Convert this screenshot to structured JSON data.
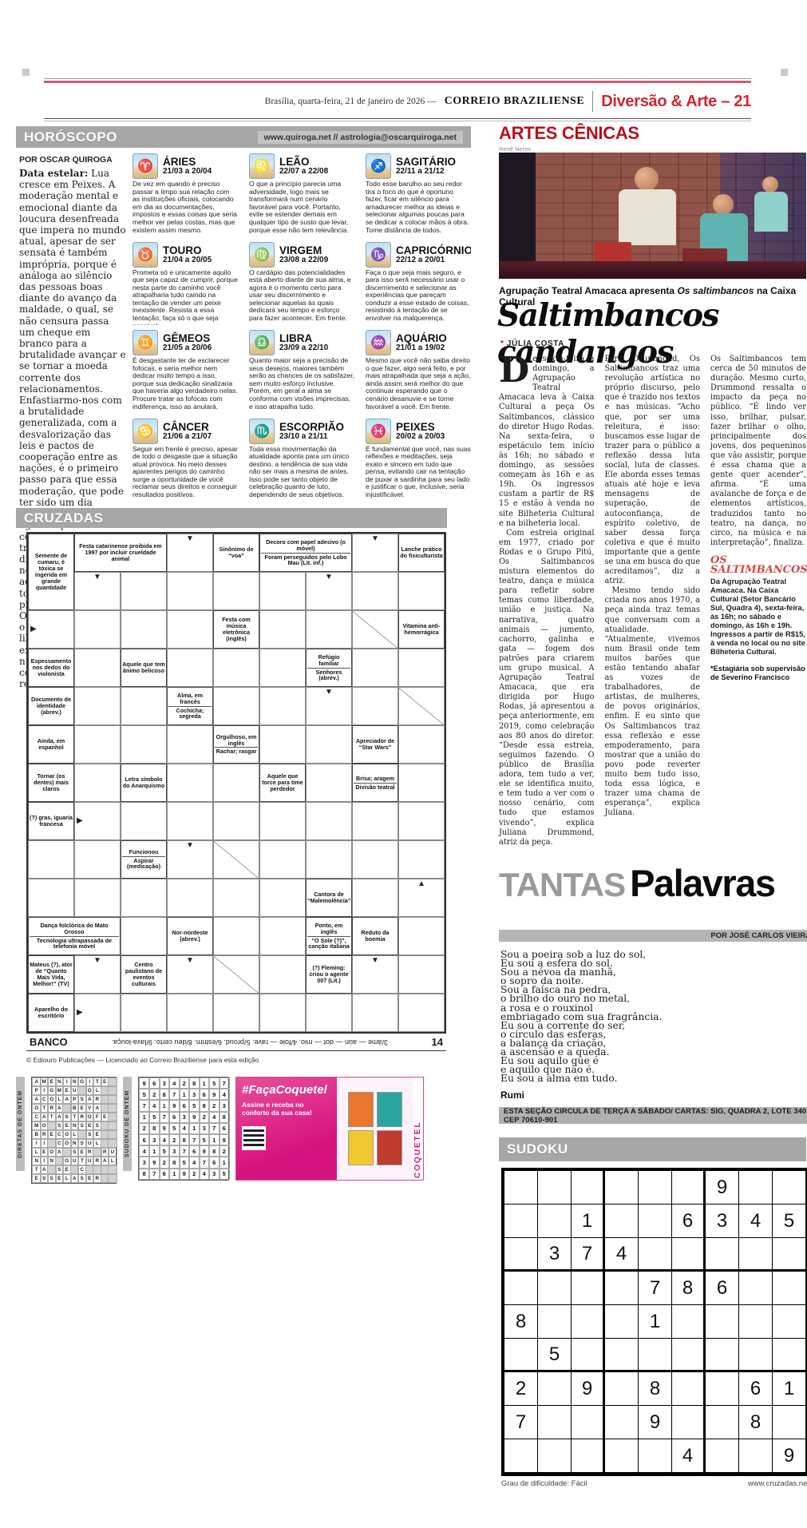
{
  "header": {
    "date": "Brasília, quarta-feira, 21 de janeiro de 2026 —",
    "brand": "CORREIO BRAZILIENSE",
    "section": "Diversão & Arte – 21"
  },
  "horoscopo": {
    "title": "HORÓSCOPO",
    "url": "www.quiroga.net // astrologia@oscarquiroga.net",
    "byline": "POR OSCAR QUIROGA",
    "intro_label": "Data estelar:",
    "intro": "Lua cresce em Peixes. A moderação mental e emocional diante da loucura desenfreada que impera no mundo atual, apesar de ser sensata é também imprópria, porque é análoga ao silêncio das pessoas boas diante do avanço da maldade, o qual, se não censura passa um cheque em branco para a brutalidade avançar e se tornar a moeda corrente dos relacionamentos. Enfastiarmo-nos com a brutalidade generalizada, com a desvalorização das leis e pactos de cooperação entre as nações, é o primeiro passo para que essa moderação, que pode ter sido um dia elegante, mas que agora representa à covardia, se transforme na faísca divina que põe fogo nesse gigante adormecido de onde todo poder emana, os princípios universais. O mundo não é mais o mesmo de antes; a liberdade, uma vez experimentada, nunca mais tem condições de retroceder.",
    "signs": [
      {
        "id": "aries",
        "symbol": "♈",
        "name": "ÁRIES",
        "dates": "21/03 a 20/04",
        "text": "De vez em quando é preciso passar a limpo sua relação com as instituições oficiais, colocando em dia as documentações, impostos e essas coisas que seria melhor ver pelas costas, mas que existem assim mesmo."
      },
      {
        "id": "touro",
        "symbol": "♉",
        "name": "TOURO",
        "dates": "21/04 a 20/05",
        "text": "Prometa só e unicamente aquilo que seja capaz de cumprir, porque nesta parte do caminho você atrapalharia tudo caindo na tentação de vender um peixe inexistente. Resista a essa tentação, faça só o que seja possível."
      },
      {
        "id": "gemeos",
        "symbol": "♊",
        "name": "GÊMEOS",
        "dates": "21/05 a 20/06",
        "text": "É desgastante ter de esclarecer fofocas, e seria melhor nem dedicar muito tempo a isso, porque sua dedicação sinalizaria que haveria algo verdadeiro nelas. Procure tratar as fofocas com indiferença, isso as anulará."
      },
      {
        "id": "cancer",
        "symbol": "♋",
        "name": "CÂNCER",
        "dates": "21/06 a 21/07",
        "text": "Seguir em frente é preciso, apesar de todo o desgaste que a situação atual provoca. No meio desses aparentes perigos do caminho surge a oportunidade de você reclamar seus direitos e conseguir resultados positivos."
      },
      {
        "id": "leao",
        "symbol": "♌",
        "name": "LEÃO",
        "dates": "22/07 a 22/08",
        "text": "O que a princípio parecia uma adversidade, logo mais se transformará num cenário favorável para você. Portanto, evite se estender demais em qualquer tipo de susto que levar, porque esse não tem relevância."
      },
      {
        "id": "virgem",
        "symbol": "♍",
        "name": "VIRGEM",
        "dates": "23/08 a 22/09",
        "text": "O cardápio das potencialidades está aberto diante de sua alma, e agora é o momento certo para usar seu discernimento e selecionar aquelas às quais dedicará seu tempo e esforço para fazer acontecer. Em frente."
      },
      {
        "id": "libra",
        "symbol": "♎",
        "name": "LIBRA",
        "dates": "23/09 a 22/10",
        "text": "Quanto maior seja a precisão de seus desejos, maiores também serão as chances de os satisfazer, sem muito esforço inclusive. Porém, em geral a alma se conforma com visões imprecisas, e isso atrapalha tudo."
      },
      {
        "id": "escorpiao",
        "symbol": "♏",
        "name": "ESCORPIÃO",
        "dates": "23/10 a 21/11",
        "text": "Toda essa movimentação da atualidade aponta para um único destino, a tendência de sua vida não ser mais a mesma de antes. Isso pode ser tanto objeto de celebração quanto de luto, dependendo de seus objetivos."
      },
      {
        "id": "sagitario",
        "symbol": "♐",
        "name": "SAGITÁRIO",
        "dates": "22/11 a 21/12",
        "text": "Todo esse barulho ao seu redor tira o foco do que é oportuno fazer, ficar em silêncio para amadurecer melhor as ideias e selecionar algumas poucas para se dedicar a colocar mãos à obra. Tome distância de todos."
      },
      {
        "id": "capricornio",
        "symbol": "♑",
        "name": "CAPRICÓRNIO",
        "dates": "22/12 a 20/01",
        "text": "Faça o que seja mais seguro, e para isso será necessário usar o discernimento e selecionar as experiências que pareçam conduzir a esse estado de coisas, resistindo à tentação de se envolver na malquerença."
      },
      {
        "id": "aquario",
        "symbol": "♒",
        "name": "AQUÁRIO",
        "dates": "21/01 a 19/02",
        "text": "Mesmo que você não saiba direito o que fazer, algo será feito, e por mais atrapalhada que seja a ação, ainda assim será melhor do que continuar esperando que o cenário desanuvie e se torne favorável a você. Em frente."
      },
      {
        "id": "peixes",
        "symbol": "♓",
        "name": "PEIXES",
        "dates": "20/02 a 20/03",
        "text": "É fundamental que você, nas suas reflexões e meditações, seja exato e sincero em tudo que pensa, evitando cair na tentação de puxar a sardinha para seu lado e justificar o que, inclusive, seria injustificável."
      }
    ]
  },
  "cruzadas": {
    "title": "CRUZADAS",
    "grid": {
      "cols": 9,
      "rows": 13,
      "clues": [
        {
          "r": 1,
          "c": 1,
          "rs": 2,
          "cs": 1,
          "t": [
            "Semente de cumaru, é tóxica se ingerida em grande quantidade"
          ]
        },
        {
          "r": 1,
          "c": 2,
          "rs": 1,
          "cs": 2,
          "t": [
            "Festa catarinense proibida em 1997 por incluir crueldade animal"
          ]
        },
        {
          "r": 1,
          "c": 5,
          "rs": 1,
          "cs": 1,
          "t": [
            "Sinônimo de “voa”"
          ]
        },
        {
          "r": 1,
          "c": 6,
          "rs": 1,
          "cs": 2,
          "t": [
            "Decoro com papel adesivo (o móvel)",
            "Foram perseguidos pelo Lobo Mau (Lit. inf.)"
          ]
        },
        {
          "r": 1,
          "c": 9,
          "rs": 1,
          "cs": 1,
          "t": [
            "Lanche prático do fisiculturista"
          ]
        },
        {
          "r": 3,
          "c": 5,
          "rs": 1,
          "cs": 1,
          "t": [
            "Festa com música eletrônica (inglês)"
          ]
        },
        {
          "r": 3,
          "c": 9,
          "rs": 1,
          "cs": 1,
          "t": [
            "Vitamina anti-hemorrágica"
          ]
        },
        {
          "r": 4,
          "c": 1,
          "rs": 1,
          "cs": 1,
          "t": [
            "Espessamento nos dedos do violonista"
          ]
        },
        {
          "r": 4,
          "c": 3,
          "rs": 1,
          "cs": 1,
          "t": [
            "Aquele que tem ânimo belicoso"
          ]
        },
        {
          "r": 4,
          "c": 7,
          "rs": 1,
          "cs": 1,
          "t": [
            "Refúgio familiar",
            "Senhores (abrev.)"
          ]
        },
        {
          "r": 5,
          "c": 1,
          "rs": 1,
          "cs": 1,
          "t": [
            "Documento de identidade (abrev.)"
          ]
        },
        {
          "r": 5,
          "c": 4,
          "rs": 1,
          "cs": 1,
          "t": [
            "Alma, em francês",
            "Cochicha; segreda"
          ]
        },
        {
          "r": 6,
          "c": 1,
          "rs": 1,
          "cs": 1,
          "t": [
            "Ainda, em espanhol"
          ]
        },
        {
          "r": 6,
          "c": 5,
          "rs": 1,
          "cs": 1,
          "t": [
            "Orgulhoso, em inglês",
            "Rachar; rasgar"
          ]
        },
        {
          "r": 6,
          "c": 8,
          "rs": 1,
          "cs": 1,
          "t": [
            "Apreciador de “Star Wars”"
          ]
        },
        {
          "r": 7,
          "c": 1,
          "rs": 1,
          "cs": 1,
          "t": [
            "Tornar (os dentes) mais claros"
          ]
        },
        {
          "r": 7,
          "c": 3,
          "rs": 1,
          "cs": 1,
          "t": [
            "Letra símbolo do Anarquismo"
          ]
        },
        {
          "r": 7,
          "c": 6,
          "rs": 1,
          "cs": 1,
          "t": [
            "Aquele que torce para time perdedor"
          ]
        },
        {
          "r": 7,
          "c": 8,
          "rs": 1,
          "cs": 1,
          "t": [
            "Brisa; aragem",
            "Divisão teatral"
          ]
        },
        {
          "r": 8,
          "c": 1,
          "rs": 1,
          "cs": 1,
          "t": [
            "(?) gras, iguaria francesa"
          ]
        },
        {
          "r": 9,
          "c": 3,
          "rs": 1,
          "cs": 1,
          "t": [
            "Funcionou",
            "Aspirar (medicação)"
          ]
        },
        {
          "r": 10,
          "c": 7,
          "rs": 1,
          "cs": 1,
          "t": [
            "Cantora de “Malemolência”"
          ]
        },
        {
          "r": 11,
          "c": 1,
          "rs": 1,
          "cs": 2,
          "t": [
            "Dança folclórica do Mato Grosso",
            "Tecnologia ultrapassada de telefonia móvel"
          ]
        },
        {
          "r": 11,
          "c": 4,
          "rs": 1,
          "cs": 1,
          "t": [
            "Nor-nordeste (abrev.)"
          ]
        },
        {
          "r": 11,
          "c": 7,
          "rs": 1,
          "cs": 1,
          "t": [
            "Ponto, em inglês",
            "“O Sole (?)”, canção italiana"
          ]
        },
        {
          "r": 11,
          "c": 8,
          "rs": 1,
          "cs": 1,
          "t": [
            "Reduto da boemia"
          ]
        },
        {
          "r": 12,
          "c": 1,
          "rs": 1,
          "cs": 1,
          "t": [
            "Mateus (?), ator de “Quanto Mais Vida, Melhor!” (TV)"
          ]
        },
        {
          "r": 12,
          "c": 3,
          "rs": 1,
          "cs": 1,
          "t": [
            "Centro paulistano de eventos culturais"
          ]
        },
        {
          "r": 12,
          "c": 7,
          "rs": 1,
          "cs": 1,
          "t": [
            "(?) Fleming: criou o agente 007 (Lit.)"
          ]
        },
        {
          "r": 13,
          "c": 1,
          "rs": 1,
          "cs": 1,
          "t": [
            "Aparelho do escritório"
          ]
        }
      ],
      "arrows": [
        {
          "r": 1,
          "c": 4,
          "g": "▼"
        },
        {
          "r": 1,
          "c": 8,
          "g": "▼"
        },
        {
          "r": 2,
          "c": 2,
          "g": "▼"
        },
        {
          "r": 2,
          "c": 7,
          "g": "▼"
        },
        {
          "r": 3,
          "c": 1,
          "g": "▶",
          "right": true
        },
        {
          "r": 5,
          "c": 7,
          "g": "▼"
        },
        {
          "r": 8,
          "c": 2,
          "g": "▶",
          "right": true
        },
        {
          "r": 9,
          "c": 4,
          "g": "▼"
        },
        {
          "r": 10,
          "c": 9,
          "g": "▲"
        },
        {
          "r": 12,
          "c": 2,
          "g": "▼"
        },
        {
          "r": 12,
          "c": 4,
          "g": "▼"
        },
        {
          "r": 12,
          "c": 8,
          "g": "▼"
        },
        {
          "r": 13,
          "c": 2,
          "g": "▶",
          "right": true
        }
      ],
      "diags": [
        {
          "r": 3,
          "c": 8
        },
        {
          "r": 5,
          "c": 9
        },
        {
          "r": 9,
          "c": 5
        },
        {
          "r": 12,
          "c": 5
        }
      ]
    },
    "banco": {
      "label": "BANCO",
      "text": "3/âme — aún — dot — mio. 4/foie — rave. 5/proud. 6/estrim. 8/deu certo. 9/lava-louça.",
      "number": "14"
    },
    "copyright": "© Ediouro Publicações — Licenciado ao Correio Braziliense para esta edição"
  },
  "artes": {
    "kicker": "ARTES CÊNICAS",
    "photo_credit": "Renê Neres",
    "caption_pre": "Agrupação Teatral Amacaca apresenta ",
    "caption_italic": "Os saltimbancos",
    "caption_post": " na Caixa Cultural",
    "headline": "Saltimbancos candangos",
    "byline_star": "*",
    "byline": " JÚLIA COSTA",
    "dropcap": "D",
    "col1_p1": "e sexta-feira a domingo, a Agrupação Teatral Amacaca leva à Caixa Cultural a peça Os Saltimbancos, clássico do diretor Hugo Rodas. Na sexta-feira, o espetáculo tem início às 16h; no sábado e domingo, as sessões começam às 16h e as 19h. Os ingressos custam a partir de R$ 15 e estão à venda no site Bilheteria Cultural e na bilheteria local.",
    "col1_p2": "Com estreia original em 1977, criado por Rodas e o Grupo Pitú, Os Saltimbancos mistura elementos do teatro, dança e música para refletir sobre temas como liberdade, união e justiça. Na narrativa, quatro animais — jumento, cachorro, galinha e gata — fogem dos patrões para criarem um grupo musical. A Agrupação Teatral Amacaca, que era dirigida por Hugo Rodas, já apresentou a peça anteriormente, em 2019, como celebração aos 80 anos do diretor. “Desde essa estreia, seguimos fazendo. O público de Brasília adora, tem tudo a ver, ele se identifica muito, e tem tudo a ver com o nosso cenário, com tudo que estamos vivendo”, explica Juliana Drummond, atriz da peça.",
    "col2_p1": "Para Drummond, Os Saltimbancos traz uma revolução artística no próprio discurso, pelo que é trazido nos textos e nas músicas. “Acho que, por ser uma releitura, é isso: buscamos esse lugar de trazer para o público a reflexão dessa luta social, luta de classes. Ele aborda esses temas atuais até hoje e leva mensagens de superação, de autoconfiança, de espírito coletivo, de saber dessa força coletiva e que é muito importante que a gente se una em busca do que acreditamos”, diz a atriz.",
    "col2_p2": "Mesmo tendo sido criada nos anos 1970, a peça ainda traz temas que conversam com a atualidade. “Atualmente, vivemos num Brasil onde tem muitos barões que estão tentando abafar as vozes de trabalhadores, de artistas, de mulheres, de povos originários, enfim. E eu sinto que Os Saltimbancos traz essa reflexão e esse empoderamento, para mostrar que a união do povo pode reverter muito bem tudo isso, toda essa lógica, e trazer uma chama de esperança”, explica Juliana.",
    "col3_p1": "Os Saltimbancos tem cerca de 50 minutos de duração. Mesmo curto, Drummond ressalta o impacto da peça no público. “É lindo ver isso, brilhar, pulsar, fazer brilhar o olho, principalmente dos jovens, dos pequeninos que vão assistir, porque é essa chama que a gente quer acender”, afirma. “É uma avalanche de força e de elementos artísticos, traduzidos tanto no teatro, na dança, no circo, na música e na interpretação”, finaliza.",
    "box": {
      "title": "OS SALTIMBANCOS",
      "text": "Da Agrupação Teatral Amacaca. Na Caixa Cultural (Setor Bancário Sul, Quadra 4), sexta-feira, às 16h; no sábado e domingo, às 16h e 19h. Ingressos a partir de R$15, à venda no local ou no site Bilheteria Cultural.",
      "footnote": "*Estagiária sob supervisão de Severino Francisco"
    }
  },
  "tantas": {
    "title_gray": "TANTAS",
    "title_black": "Palavras",
    "byline": "POR JOSÉ CARLOS VIEIRA",
    "poem_lines": [
      "Sou a poeira sob a luz do sol,",
      "Eu sou a esfera do sol.",
      "Sou a névoa da manhã,",
      "o sopro da noite.",
      "Sou a faísca na pedra,",
      "o brilho do ouro no metal,",
      "a rosa e o rouxinol",
      "embriagado com sua fragrância.",
      "Eu sou a corrente do ser,",
      "o círculo das esferas,",
      "a balança da criação,",
      "a ascensão e a queda.",
      "Eu sou aquilo que é",
      "e aquilo que não é.",
      "Eu sou a alma em tudo."
    ],
    "author": "Rumi",
    "strip": "ESTA SEÇÃO CIRCULA DE TERÇA A SÁBADO/ CARTAS: SIG, QUADRA 2, LOTE 340 / CEP 70610-901"
  },
  "sudoku": {
    "title": "SUDOKU",
    "grid": [
      [
        0,
        0,
        0,
        0,
        0,
        0,
        9,
        0,
        0
      ],
      [
        0,
        0,
        1,
        0,
        0,
        6,
        3,
        4,
        5
      ],
      [
        0,
        3,
        7,
        4,
        0,
        0,
        0,
        0,
        0
      ],
      [
        0,
        0,
        0,
        0,
        7,
        8,
        6,
        0,
        0
      ],
      [
        8,
        0,
        0,
        0,
        1,
        0,
        0,
        0,
        0
      ],
      [
        0,
        5,
        0,
        0,
        0,
        0,
        0,
        0,
        0
      ],
      [
        2,
        0,
        9,
        0,
        8,
        0,
        0,
        6,
        1
      ],
      [
        7,
        0,
        0,
        0,
        9,
        0,
        0,
        8,
        0
      ],
      [
        0,
        0,
        0,
        0,
        0,
        4,
        0,
        0,
        9
      ]
    ],
    "difficulty": "Grau de dificuldade: Fácil",
    "site": "www.cruzadas.net"
  },
  "ontem": {
    "diretas_label": "DIRETAS DE ONTEM",
    "sudoku_label": "SUDOKU DE ONTEM",
    "letters": [
      "AMENINGITE.",
      "PIGMEU.OL..",
      "ACOLAPSAR..",
      "OTRA.BEVA..",
      "CATASTROFE.",
      "MO.SENSES..",
      "BRECOL.SE..",
      "II.CONSUL..",
      "LEOA.SER.RU",
      "NIN.GUTURAL",
      "TA.SE.C....",
      "ESSELASER.."
    ],
    "numbers": [
      [
        9,
        6,
        3,
        4,
        2,
        8,
        1,
        5,
        7
      ],
      [
        5,
        2,
        8,
        7,
        1,
        3,
        6,
        9,
        4
      ],
      [
        7,
        4,
        1,
        9,
        6,
        5,
        8,
        2,
        3
      ],
      [
        1,
        5,
        7,
        6,
        3,
        9,
        2,
        4,
        8
      ],
      [
        2,
        8,
        9,
        5,
        4,
        1,
        3,
        7,
        6
      ],
      [
        6,
        3,
        4,
        2,
        8,
        7,
        5,
        1,
        9
      ],
      [
        4,
        1,
        5,
        3,
        7,
        6,
        9,
        8,
        2
      ],
      [
        3,
        9,
        2,
        8,
        5,
        4,
        7,
        6,
        1
      ],
      [
        8,
        7,
        6,
        1,
        9,
        2,
        4,
        3,
        5
      ]
    ]
  },
  "ad": {
    "hashtag": "#FaçaCoquetel",
    "line": "Assine e receba no conforto da sua casa!",
    "brand": "COQUETEL",
    "cover_colors": [
      "#e8762c",
      "#2aa6a0",
      "#f0c930",
      "#c03a2e"
    ]
  }
}
